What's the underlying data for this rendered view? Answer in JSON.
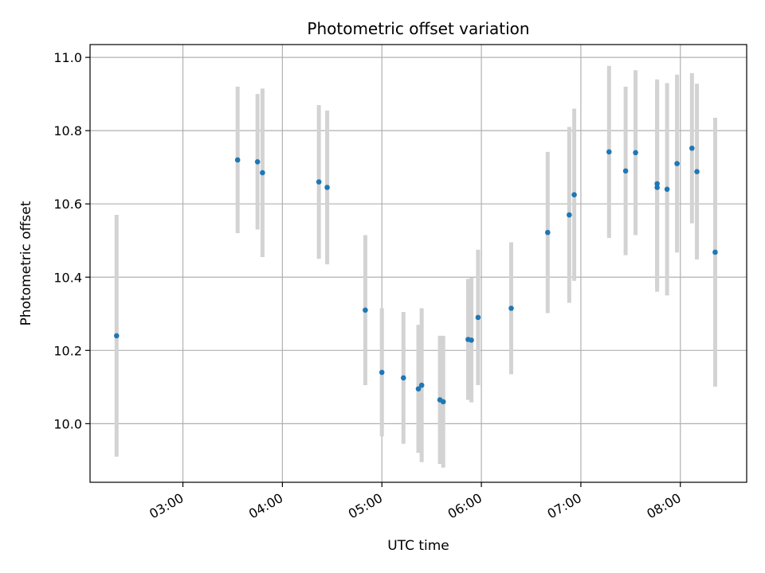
{
  "chart_data": {
    "type": "scatter",
    "title": "Photometric offset variation",
    "xlabel": "UTC time",
    "ylabel": "Photometric offset",
    "x_unit": "UTC time of day (HH:MM)",
    "xlim": [
      "02:04",
      "08:40"
    ],
    "ylim": [
      9.84,
      11.035
    ],
    "x_ticks": [
      "03:00",
      "04:00",
      "05:00",
      "06:00",
      "07:00",
      "08:00"
    ],
    "y_ticks": [
      10.0,
      10.2,
      10.4,
      10.6,
      10.8,
      11.0
    ],
    "y_tick_labels": [
      "10.0",
      "10.2",
      "10.4",
      "10.6",
      "10.8",
      "11.0"
    ],
    "grid": true,
    "colors": {
      "point": "#1f77b4",
      "errorbar": "#d3d3d3",
      "grid": "#b0b0b0"
    },
    "series": [
      {
        "points": [
          {
            "x": "02:20",
            "y": 10.24,
            "err": 0.33
          },
          {
            "x": "03:33",
            "y": 10.72,
            "err": 0.2
          },
          {
            "x": "03:45",
            "y": 10.715,
            "err": 0.185
          },
          {
            "x": "03:48",
            "y": 10.685,
            "err": 0.23
          },
          {
            "x": "04:22",
            "y": 10.66,
            "err": 0.21
          },
          {
            "x": "04:27",
            "y": 10.645,
            "err": 0.21
          },
          {
            "x": "04:50",
            "y": 10.31,
            "err": 0.205
          },
          {
            "x": "05:00",
            "y": 10.14,
            "err": 0.175
          },
          {
            "x": "05:13",
            "y": 10.125,
            "err": 0.18
          },
          {
            "x": "05:22",
            "y": 10.095,
            "err": 0.175
          },
          {
            "x": "05:24",
            "y": 10.105,
            "err": 0.21
          },
          {
            "x": "05:35",
            "y": 10.065,
            "err": 0.175
          },
          {
            "x": "05:37",
            "y": 10.06,
            "err": 0.18
          },
          {
            "x": "05:52",
            "y": 10.23,
            "err": 0.165
          },
          {
            "x": "05:54",
            "y": 10.228,
            "err": 0.17
          },
          {
            "x": "05:58",
            "y": 10.29,
            "err": 0.185
          },
          {
            "x": "06:18",
            "y": 10.315,
            "err": 0.18
          },
          {
            "x": "06:40",
            "y": 10.522,
            "err": 0.22
          },
          {
            "x": "06:53",
            "y": 10.57,
            "err": 0.24
          },
          {
            "x": "06:56",
            "y": 10.625,
            "err": 0.235
          },
          {
            "x": "07:17",
            "y": 10.742,
            "err": 0.235
          },
          {
            "x": "07:27",
            "y": 10.69,
            "err": 0.23
          },
          {
            "x": "07:33",
            "y": 10.74,
            "err": 0.225
          },
          {
            "x": "07:46",
            "y": 10.655,
            "err": 0.285
          },
          {
            "x": "07:46",
            "y": 10.645,
            "err": 0.285
          },
          {
            "x": "07:52",
            "y": 10.64,
            "err": 0.29
          },
          {
            "x": "07:58",
            "y": 10.71,
            "err": 0.243
          },
          {
            "x": "08:07",
            "y": 10.752,
            "err": 0.205
          },
          {
            "x": "08:10",
            "y": 10.688,
            "err": 0.24
          },
          {
            "x": "08:21",
            "y": 10.468,
            "err": 0.367
          }
        ]
      }
    ]
  }
}
